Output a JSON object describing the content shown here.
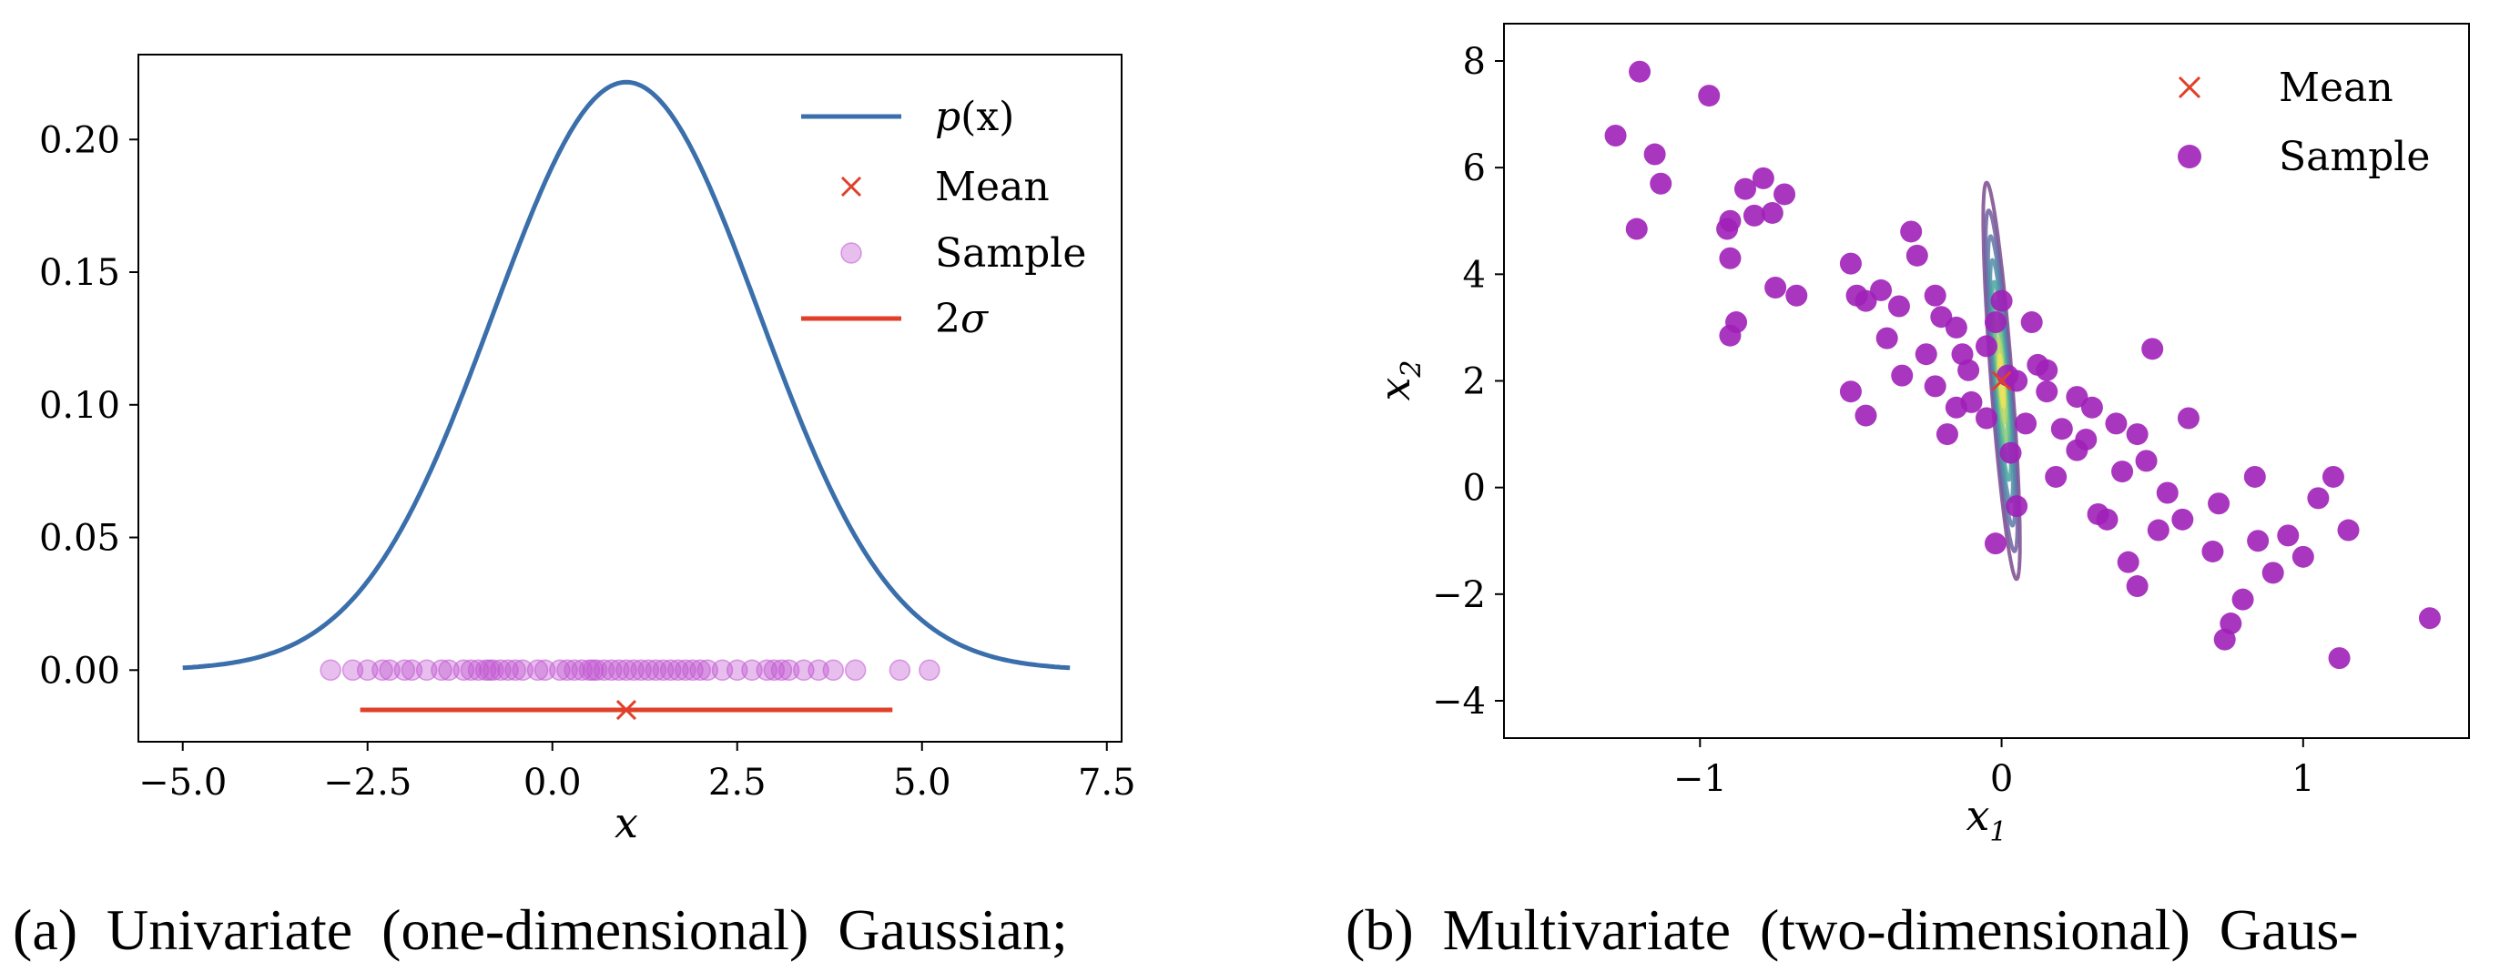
{
  "chart_data": [
    {
      "type": "line",
      "caption": "(a)  Univariate  (one-dimensional)  Gaussian;",
      "xlabel": "x",
      "ylabel": "",
      "xlim": [
        -5.6,
        7.7
      ],
      "ylim": [
        -0.027,
        0.232
      ],
      "xticks": [
        -5.0,
        -2.5,
        0.0,
        2.5,
        5.0,
        7.5
      ],
      "xtick_labels": [
        "−5.0",
        "−2.5",
        "0.0",
        "2.5",
        "5.0",
        "7.5"
      ],
      "yticks": [
        0.0,
        0.05,
        0.1,
        0.15,
        0.2
      ],
      "ytick_labels": [
        "0.00",
        "0.05",
        "0.10",
        "0.15",
        "0.20"
      ],
      "grid": false,
      "legend_position": "top-right",
      "colors": {
        "pdf": "#3a6fab",
        "mean": "#e0402a",
        "sample": "#c055d0",
        "sigma": "#e0402a"
      },
      "series": [
        {
          "name": "p(x)",
          "kind": "line",
          "mean": 1.0,
          "std": 1.8,
          "x_range": [
            -5.0,
            7.0
          ]
        },
        {
          "name": "Mean",
          "kind": "marker",
          "x": [
            1.0
          ],
          "y": [
            -0.015
          ]
        },
        {
          "name": "Sample",
          "kind": "scatter",
          "y_value": 0.0,
          "x": [
            -3.0,
            -2.7,
            -2.5,
            -2.3,
            -2.2,
            -2.0,
            -1.9,
            -1.7,
            -1.5,
            -1.4,
            -1.2,
            -1.1,
            -1.0,
            -0.9,
            -0.85,
            -0.8,
            -0.7,
            -0.6,
            -0.5,
            -0.4,
            -0.2,
            -0.1,
            0.1,
            0.2,
            0.3,
            0.4,
            0.5,
            0.55,
            0.6,
            0.7,
            0.8,
            0.9,
            1.0,
            1.1,
            1.2,
            1.3,
            1.4,
            1.5,
            1.6,
            1.7,
            1.8,
            1.9,
            2.0,
            2.1,
            2.3,
            2.5,
            2.7,
            2.9,
            3.0,
            3.1,
            3.2,
            3.4,
            3.6,
            3.8,
            4.1,
            4.7,
            5.1
          ]
        },
        {
          "name": "2σ",
          "kind": "segment",
          "x": [
            -2.6,
            4.6
          ],
          "y": [
            -0.015,
            -0.015
          ]
        }
      ],
      "legend": [
        {
          "label_main": "p",
          "label_rest": "(x)",
          "kind": "line"
        },
        {
          "label_main": "Mean",
          "label_rest": "",
          "kind": "marker"
        },
        {
          "label_main": "Sample",
          "label_rest": "",
          "kind": "scatter"
        },
        {
          "label_main": "2",
          "label_rest": "σ",
          "kind": "segment"
        }
      ]
    },
    {
      "type": "scatter",
      "caption": "(b)  Multivariate  (two-dimensional)  Gaus-",
      "xlabel": "x",
      "xlabel_sub": "1",
      "ylabel": "x",
      "ylabel_sub": "2",
      "xlim": [
        -1.65,
        1.55
      ],
      "ylim": [
        -4.7,
        8.7
      ],
      "xticks": [
        -1,
        0,
        1
      ],
      "xtick_labels": [
        "−1",
        "0",
        "1"
      ],
      "yticks": [
        -4,
        -2,
        0,
        2,
        4,
        6,
        8
      ],
      "ytick_labels": [
        "−4",
        "−2",
        "0",
        "2",
        "4",
        "6",
        "8"
      ],
      "grid": false,
      "legend_position": "top-right",
      "colors": {
        "mean": "#e0402a",
        "sample": "#a020b8"
      },
      "contour_colors": [
        "#7b4a8e",
        "#6f5fa0",
        "#5e78a8",
        "#4f8ea8",
        "#4aa3a0",
        "#5eb896",
        "#86c980",
        "#b6d86c",
        "#ece458"
      ],
      "contour": {
        "center": [
          0.0,
          2.0
        ],
        "angle_deg": -47,
        "semi_axes_at_level_1": [
          1.95,
          0.62
        ],
        "levels": [
          1.0,
          0.86,
          0.73,
          0.61,
          0.5,
          0.4,
          0.3,
          0.21,
          0.13
        ]
      },
      "series": [
        {
          "name": "Mean",
          "kind": "marker",
          "x": [
            0.0
          ],
          "y": [
            2.0
          ]
        },
        {
          "name": "Sample",
          "kind": "scatter",
          "x": [
            -1.2,
            -0.97,
            -1.28,
            -1.15,
            -1.13,
            -0.9,
            -0.91,
            -0.85,
            -0.79,
            -0.76,
            -0.82,
            -0.72,
            -0.9,
            -0.88,
            -0.75,
            -0.68,
            -0.5,
            -0.48,
            -0.45,
            -0.4,
            -0.34,
            -0.3,
            -0.28,
            -0.22,
            -0.2,
            -0.15,
            -0.13,
            -0.1,
            -0.05,
            -0.02,
            0.0,
            0.02,
            0.05,
            0.1,
            0.12,
            0.15,
            0.2,
            0.25,
            0.3,
            0.35,
            0.4,
            0.45,
            0.5,
            0.52,
            0.55,
            0.6,
            0.62,
            0.7,
            0.72,
            0.8,
            0.85,
            0.9,
            0.95,
            1.0,
            1.05,
            1.1,
            1.15,
            1.42,
            0.74,
            0.76,
            0.84,
            -0.5,
            -0.45,
            -0.33,
            -0.38,
            -0.25,
            -0.22,
            -0.18,
            -0.15,
            -0.11,
            -0.05,
            0.03,
            0.18,
            0.28,
            0.32,
            0.42,
            0.45,
            0.48,
            0.05,
            -0.02,
            0.08,
            0.15,
            0.25,
            0.38,
            -1.21,
            -0.9,
            1.12
          ],
          "y": [
            7.8,
            7.35,
            6.6,
            6.25,
            5.7,
            5.0,
            4.85,
            5.6,
            5.8,
            5.15,
            5.1,
            5.5,
            4.3,
            3.1,
            3.75,
            3.6,
            4.2,
            3.6,
            3.5,
            3.7,
            3.4,
            4.8,
            4.35,
            3.6,
            3.2,
            3.0,
            2.5,
            1.6,
            1.3,
            3.1,
            3.5,
            2.1,
            2.0,
            3.1,
            2.3,
            1.8,
            1.1,
            0.7,
            1.5,
            -0.6,
            0.3,
            1.0,
            2.6,
            -0.8,
            -0.1,
            -0.6,
            1.3,
            -1.2,
            -0.3,
            -2.1,
            -1.0,
            -1.6,
            -0.9,
            -1.3,
            -0.2,
            0.2,
            -0.8,
            -2.45,
            -2.85,
            -2.55,
            0.2,
            1.8,
            1.35,
            2.1,
            2.8,
            2.5,
            1.9,
            1.0,
            1.5,
            2.2,
            2.65,
            0.65,
            0.2,
            0.9,
            -0.5,
            -1.4,
            -1.85,
            0.5,
            -0.35,
            -1.05,
            1.2,
            2.2,
            1.7,
            1.2,
            4.85,
            2.85,
            -3.2
          ]
        }
      ],
      "legend": [
        {
          "label_main": "Mean",
          "kind": "marker"
        },
        {
          "label_main": "Sample",
          "kind": "scatter"
        }
      ]
    }
  ]
}
